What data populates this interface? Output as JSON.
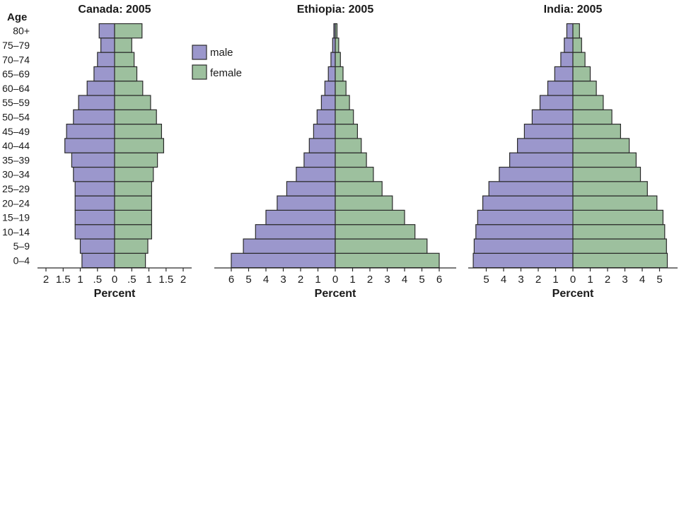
{
  "chart_data": [
    {
      "type": "bar",
      "title": "Canada: 2005",
      "xlabel": "Percent",
      "ylabel": "Age",
      "categories": [
        "0–4",
        "5–9",
        "10–14",
        "15–19",
        "20–24",
        "25–29",
        "30–34",
        "35–39",
        "40–44",
        "45–49",
        "50–54",
        "55–59",
        "60–64",
        "65–69",
        "70–74",
        "75–79",
        "80+"
      ],
      "series": [
        {
          "name": "male",
          "values": [
            0.95,
            1.0,
            1.15,
            1.15,
            1.15,
            1.15,
            1.2,
            1.25,
            1.45,
            1.4,
            1.2,
            1.05,
            0.8,
            0.6,
            0.5,
            0.4,
            0.45
          ]
        },
        {
          "name": "female",
          "values": [
            0.9,
            0.97,
            1.08,
            1.08,
            1.08,
            1.08,
            1.13,
            1.25,
            1.43,
            1.37,
            1.22,
            1.05,
            0.82,
            0.65,
            0.57,
            0.5,
            0.8
          ]
        }
      ],
      "xlim": [
        -2,
        2
      ],
      "xticks": [
        "2",
        "1.5",
        "1",
        ".5",
        "0",
        ".5",
        "1",
        "1.5",
        "2"
      ]
    },
    {
      "type": "bar",
      "title": "Ethiopia: 2005",
      "xlabel": "Percent",
      "ylabel": "Age",
      "categories": [
        "0–4",
        "5–9",
        "10–14",
        "15–19",
        "20–24",
        "25–29",
        "30–34",
        "35–39",
        "40–44",
        "45–49",
        "50–54",
        "55–59",
        "60–64",
        "65–69",
        "70–74",
        "75–79",
        "80+"
      ],
      "series": [
        {
          "name": "male",
          "values": [
            6.0,
            5.3,
            4.6,
            4.0,
            3.35,
            2.8,
            2.25,
            1.8,
            1.5,
            1.25,
            1.05,
            0.8,
            0.6,
            0.4,
            0.25,
            0.15,
            0.08
          ]
        },
        {
          "name": "female",
          "values": [
            6.0,
            5.3,
            4.6,
            4.0,
            3.3,
            2.7,
            2.2,
            1.8,
            1.5,
            1.28,
            1.05,
            0.82,
            0.62,
            0.45,
            0.3,
            0.2,
            0.1
          ]
        }
      ],
      "xlim": [
        -6.5,
        6.5
      ],
      "xticks": [
        "6",
        "5",
        "4",
        "3",
        "2",
        "1",
        "0",
        "1",
        "2",
        "3",
        "4",
        "5",
        "6"
      ]
    },
    {
      "type": "bar",
      "title": "India: 2005",
      "xlabel": "Percent",
      "ylabel": "Age",
      "categories": [
        "0–4",
        "5–9",
        "10–14",
        "15–19",
        "20–24",
        "25–29",
        "30–34",
        "35–39",
        "40–44",
        "45–49",
        "50–54",
        "55–59",
        "60–64",
        "65–69",
        "70–74",
        "75–79",
        "80+"
      ],
      "series": [
        {
          "name": "male",
          "values": [
            5.75,
            5.7,
            5.6,
            5.5,
            5.2,
            4.85,
            4.25,
            3.65,
            3.2,
            2.8,
            2.35,
            1.9,
            1.45,
            1.05,
            0.7,
            0.5,
            0.35
          ]
        },
        {
          "name": "female",
          "values": [
            5.45,
            5.4,
            5.3,
            5.2,
            4.85,
            4.3,
            3.9,
            3.65,
            3.25,
            2.75,
            2.25,
            1.75,
            1.35,
            1.0,
            0.7,
            0.5,
            0.38
          ]
        }
      ],
      "xlim": [
        -5.9,
        5.9
      ],
      "xticks": [
        "5",
        "4",
        "3",
        "2",
        "1",
        "0",
        "1",
        "2",
        "3",
        "4",
        "5"
      ]
    }
  ],
  "age_header": "Age",
  "legend": {
    "items": [
      {
        "label": "male",
        "color": "#9b97cc"
      },
      {
        "label": "female",
        "color": "#9dc09e"
      }
    ],
    "position": "top"
  },
  "colors": {
    "male": "#9b97cc",
    "female": "#9dc09e"
  }
}
